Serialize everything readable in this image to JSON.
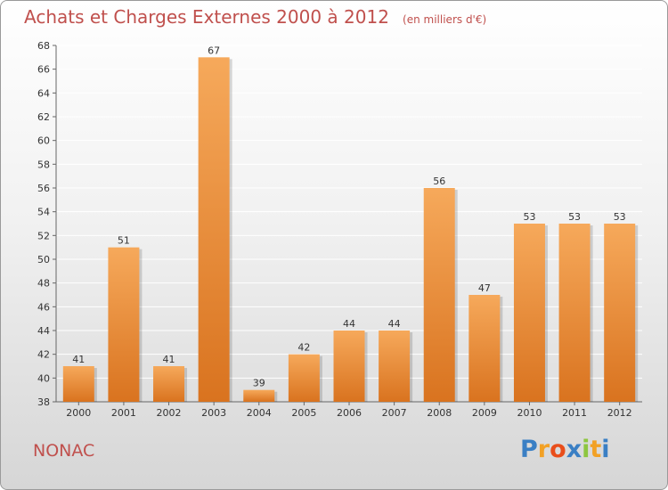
{
  "title": "Achats et Charges Externes 2000 à 2012",
  "subtitle": "(en milliers d'€)",
  "place": "NONAC",
  "brand": {
    "letters": [
      "P",
      "r",
      "o",
      "x",
      "i",
      "t",
      "i"
    ],
    "colors": [
      "#3a7fc4",
      "#f2a125",
      "#e94e1b",
      "#3a7fc4",
      "#8dc63f",
      "#f2a125",
      "#3a7fc4"
    ]
  },
  "colors": {
    "bar_light": "#f6a95b",
    "bar_dark": "#d9731f",
    "title": "#c0504d",
    "grid": "#ffffff"
  },
  "chart_data": {
    "type": "bar",
    "categories": [
      "2000",
      "2001",
      "2002",
      "2003",
      "2004",
      "2005",
      "2006",
      "2007",
      "2008",
      "2009",
      "2010",
      "2011",
      "2012"
    ],
    "values": [
      41,
      51,
      41,
      67,
      39,
      42,
      44,
      44,
      56,
      47,
      53,
      53,
      53
    ],
    "ylim": [
      38,
      68
    ],
    "yticks": [
      38,
      40,
      42,
      44,
      46,
      48,
      50,
      52,
      54,
      56,
      58,
      60,
      62,
      64,
      66,
      68
    ],
    "grid": true,
    "data_labels": true
  }
}
